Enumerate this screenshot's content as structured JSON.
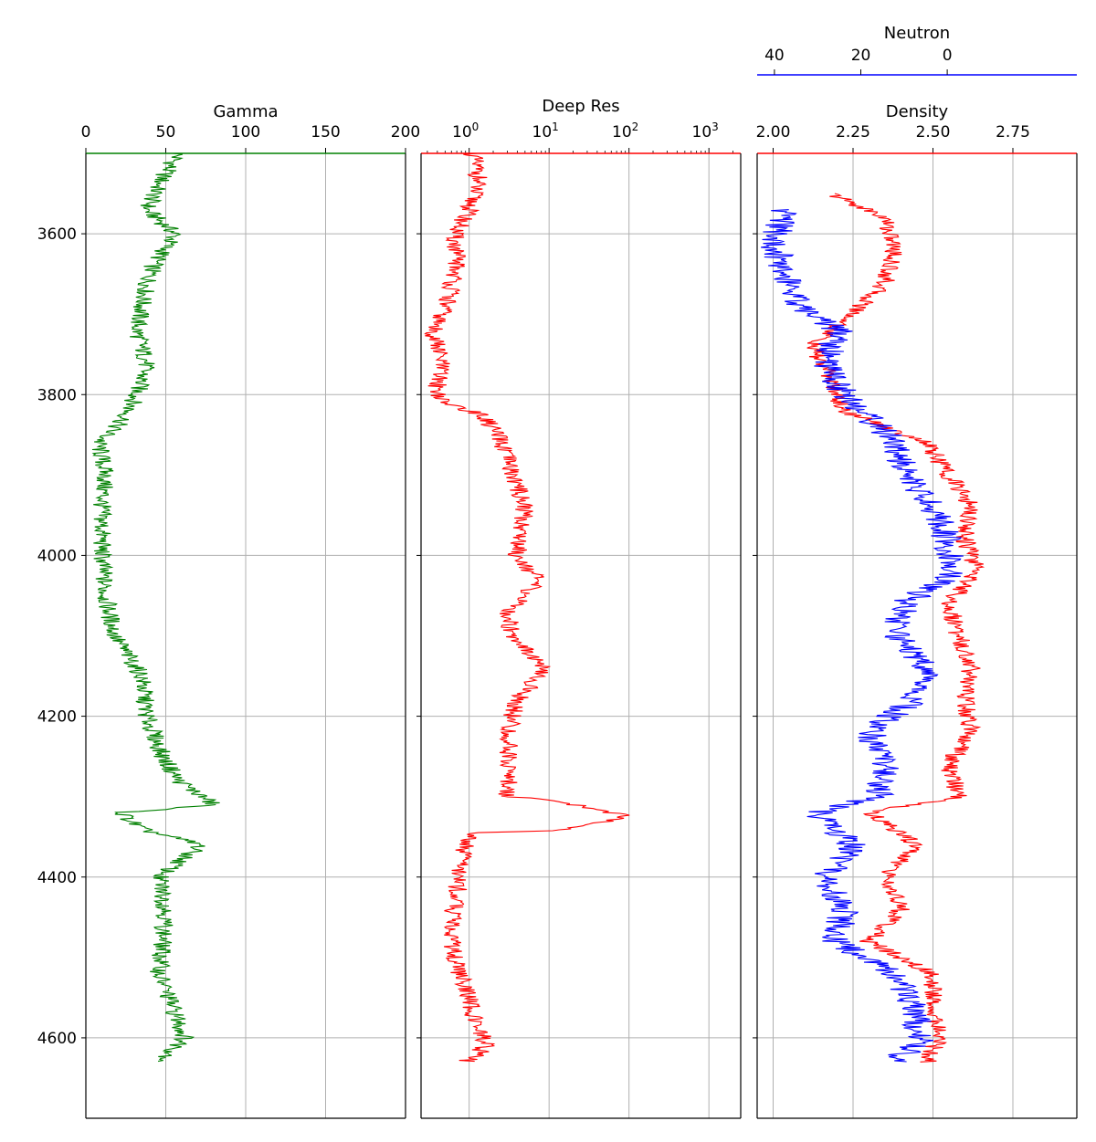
{
  "chart_data": [
    {
      "type": "line",
      "title": "",
      "xlabel": "Gamma",
      "ylabel": "",
      "x_scale": "linear",
      "xlim": [
        0,
        200
      ],
      "ylim": [
        4700,
        3500
      ],
      "x_ticks": [
        "0",
        "50",
        "100",
        "150",
        "200"
      ],
      "y_ticks": [
        "3600",
        "3800",
        "4000",
        "4200",
        "4400",
        "4600"
      ],
      "grid": true,
      "series": [
        {
          "color": "#008000",
          "depth": [
            3500,
            3530,
            3570,
            3600,
            3640,
            3680,
            3720,
            3760,
            3800,
            3830,
            3860,
            3900,
            3940,
            4000,
            4050,
            4100,
            4150,
            4200,
            4250,
            4280,
            4310,
            4320,
            4340,
            4360,
            4400,
            4440,
            4480,
            4520,
            4560,
            4600,
            4630
          ],
          "values": [
            58,
            48,
            38,
            56,
            42,
            36,
            32,
            38,
            32,
            24,
            8,
            12,
            10,
            10,
            12,
            18,
            35,
            38,
            48,
            58,
            80,
            22,
            34,
            72,
            46,
            50,
            48,
            46,
            54,
            62,
            48
          ]
        }
      ]
    },
    {
      "type": "line",
      "title": "",
      "xlabel": "Deep Res",
      "ylabel": "",
      "x_scale": "log",
      "xlim": [
        0.25,
        2500
      ],
      "ylim": [
        4700,
        3500
      ],
      "x_ticks": [
        "10^0",
        "10^1",
        "10^2",
        "10^3"
      ],
      "grid": true,
      "series": [
        {
          "color": "#ff0000",
          "depth": [
            3500,
            3530,
            3570,
            3600,
            3640,
            3680,
            3720,
            3760,
            3790,
            3810,
            3830,
            3860,
            3900,
            3940,
            4000,
            4030,
            4070,
            4100,
            4140,
            4180,
            4220,
            4260,
            4300,
            4315,
            4325,
            4335,
            4345,
            4380,
            4420,
            4460,
            4500,
            4540,
            4580,
            4610,
            4630
          ],
          "values": [
            1.1,
            1.3,
            1.0,
            0.65,
            0.7,
            0.55,
            0.35,
            0.45,
            0.4,
            0.45,
            1.6,
            2.5,
            3.5,
            5.0,
            4.0,
            7.0,
            3.0,
            3.5,
            8.0,
            4.0,
            3.0,
            3.2,
            3.0,
            30,
            90,
            30,
            1.0,
            0.8,
            0.7,
            0.6,
            0.65,
            0.9,
            1.2,
            1.6,
            0.9
          ]
        }
      ]
    },
    {
      "type": "line",
      "title": "",
      "xlabel": "Density",
      "ylabel": "",
      "x_scale": "linear",
      "xlim": [
        1.95,
        2.95
      ],
      "ylim": [
        4700,
        3500
      ],
      "x_ticks": [
        "2.00",
        "2.25",
        "2.50",
        "2.75"
      ],
      "grid": true,
      "series": [
        {
          "name": "Density",
          "color": "#ff0000",
          "depth": [
            3550,
            3580,
            3620,
            3660,
            3700,
            3740,
            3780,
            3820,
            3860,
            3900,
            3940,
            3980,
            4020,
            4060,
            4100,
            4140,
            4180,
            4220,
            4260,
            4300,
            4320,
            4360,
            4400,
            4440,
            4480,
            4520,
            4560,
            4600,
            4630
          ],
          "values": [
            2.18,
            2.35,
            2.38,
            2.35,
            2.25,
            2.12,
            2.18,
            2.22,
            2.48,
            2.55,
            2.62,
            2.6,
            2.64,
            2.55,
            2.58,
            2.62,
            2.6,
            2.62,
            2.55,
            2.58,
            2.3,
            2.45,
            2.35,
            2.4,
            2.3,
            2.5,
            2.5,
            2.52,
            2.48
          ]
        },
        {
          "name": "Neutron",
          "color": "#0000ff",
          "depth": [
            3570,
            3610,
            3650,
            3690,
            3720,
            3760,
            3800,
            3830,
            3860,
            3900,
            3940,
            3980,
            4020,
            4060,
            4100,
            4140,
            4180,
            4220,
            4260,
            4300,
            4320,
            4360,
            4400,
            4440,
            4480,
            4520,
            4560,
            4600,
            4630
          ],
          "values": [
            38,
            40,
            38,
            34,
            25,
            28,
            24,
            18,
            12,
            10,
            3,
            0,
            -2,
            10,
            12,
            5,
            8,
            18,
            14,
            16,
            30,
            22,
            28,
            24,
            26,
            12,
            8,
            6,
            12
          ]
        }
      ],
      "secondary_axis": {
        "label": "Neutron",
        "xlim": [
          44,
          -30
        ],
        "x_ticks": [
          "40",
          "20",
          "0"
        ],
        "color": "#0000ff"
      }
    }
  ]
}
